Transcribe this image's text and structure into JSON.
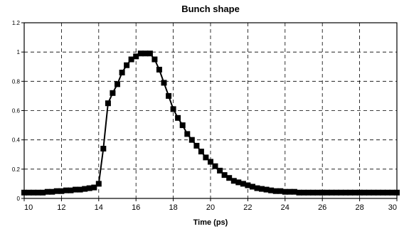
{
  "chart_data": {
    "type": "line",
    "title": "Bunch shape",
    "xlabel": "Time (ps)",
    "ylabel": "",
    "xlim": [
      10,
      30
    ],
    "ylim": [
      0,
      1.2
    ],
    "xticks": [
      "10",
      "12",
      "14",
      "16",
      "18",
      "20",
      "22",
      "24",
      "26",
      "28",
      "30"
    ],
    "yticks": [
      "0",
      "0.2",
      "0.4",
      "0.6",
      "0.8",
      "1",
      "1.2"
    ],
    "grid": true,
    "series": [
      {
        "color": "#000000",
        "marker": "square",
        "x": [
          10.0,
          10.25,
          10.5,
          10.75,
          11.0,
          11.25,
          11.5,
          11.75,
          12.0,
          12.25,
          12.5,
          12.75,
          13.0,
          13.25,
          13.5,
          13.75,
          14.0,
          14.25,
          14.5,
          14.75,
          15.0,
          15.25,
          15.5,
          15.75,
          16.0,
          16.25,
          16.5,
          16.75,
          17.0,
          17.25,
          17.5,
          17.75,
          18.0,
          18.25,
          18.5,
          18.75,
          19.0,
          19.25,
          19.5,
          19.75,
          20.0,
          20.25,
          20.5,
          20.75,
          21.0,
          21.25,
          21.5,
          21.75,
          22.0,
          22.25,
          22.5,
          22.75,
          23.0,
          23.25,
          23.5,
          23.75,
          24.0,
          24.25,
          24.5,
          24.75,
          25.0,
          25.25,
          25.5,
          25.75,
          26.0,
          26.25,
          26.5,
          26.75,
          27.0,
          27.25,
          27.5,
          27.75,
          28.0,
          28.25,
          28.5,
          28.75,
          29.0,
          29.25,
          29.5,
          29.75,
          30.0
        ],
        "y": [
          0.04,
          0.04,
          0.04,
          0.04,
          0.04,
          0.045,
          0.045,
          0.05,
          0.05,
          0.055,
          0.055,
          0.06,
          0.06,
          0.065,
          0.07,
          0.075,
          0.1,
          0.34,
          0.65,
          0.72,
          0.78,
          0.86,
          0.91,
          0.95,
          0.97,
          0.99,
          0.99,
          0.99,
          0.95,
          0.88,
          0.79,
          0.7,
          0.61,
          0.55,
          0.5,
          0.44,
          0.4,
          0.36,
          0.32,
          0.28,
          0.25,
          0.22,
          0.19,
          0.16,
          0.14,
          0.12,
          0.11,
          0.1,
          0.09,
          0.08,
          0.07,
          0.065,
          0.06,
          0.055,
          0.05,
          0.05,
          0.045,
          0.045,
          0.045,
          0.04,
          0.04,
          0.04,
          0.04,
          0.04,
          0.04,
          0.04,
          0.04,
          0.04,
          0.04,
          0.04,
          0.04,
          0.04,
          0.04,
          0.04,
          0.04,
          0.04,
          0.04,
          0.04,
          0.04,
          0.04,
          0.04
        ]
      }
    ]
  }
}
